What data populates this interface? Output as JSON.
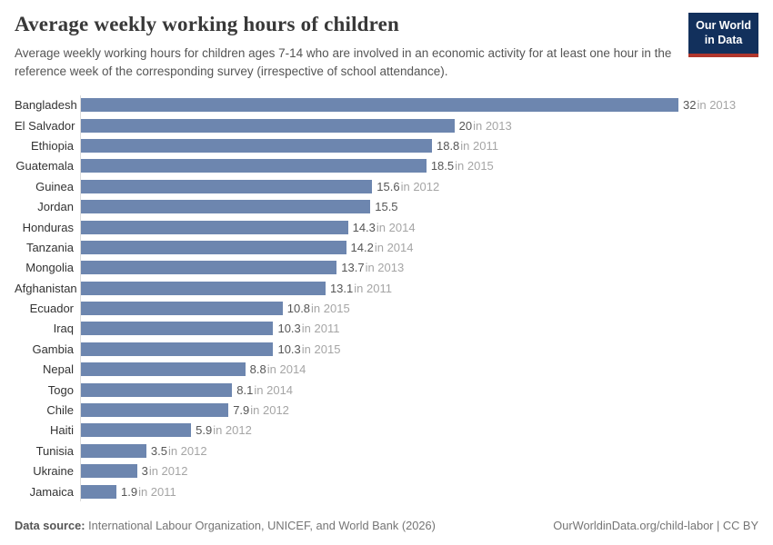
{
  "header": {
    "title": "Average weekly working hours of children",
    "subtitle": "Average weekly working hours for children ages 7-14 who are involved in an economic activity for at least one hour in the reference week of the corresponding survey (irrespective of school attendance).",
    "logo": {
      "line1": "Our World",
      "line2": "in Data",
      "bg_color": "#12305c",
      "accent_color": "#b0362c"
    }
  },
  "chart_data": {
    "type": "bar",
    "orientation": "horizontal",
    "title": "Average weekly working hours of children",
    "xlabel": "",
    "ylabel": "",
    "xlim": [
      0,
      32
    ],
    "grid": false,
    "legend": false,
    "bar_color": "#6d86af",
    "categories": [
      "Bangladesh",
      "El Salvador",
      "Ethiopia",
      "Guatemala",
      "Guinea",
      "Jordan",
      "Honduras",
      "Tanzania",
      "Mongolia",
      "Afghanistan",
      "Ecuador",
      "Iraq",
      "Gambia",
      "Nepal",
      "Togo",
      "Chile",
      "Haiti",
      "Tunisia",
      "Ukraine",
      "Jamaica"
    ],
    "values": [
      32,
      20,
      18.8,
      18.5,
      15.6,
      15.5,
      14.3,
      14.2,
      13.7,
      13.1,
      10.8,
      10.3,
      10.3,
      8.8,
      8.1,
      7.9,
      5.9,
      3.5,
      3,
      1.9
    ],
    "value_labels": [
      "32",
      "20",
      "18.8",
      "18.5",
      "15.6",
      "15.5",
      "14.3",
      "14.2",
      "13.7",
      "13.1",
      "10.8",
      "10.3",
      "10.3",
      "8.8",
      "8.1",
      "7.9",
      "5.9",
      "3.5",
      "3",
      "1.9"
    ],
    "year_labels": [
      "in 2013",
      "in 2013",
      "in 2011",
      "in 2015",
      "in 2012",
      "",
      "in 2014",
      "in 2014",
      "in 2013",
      "in 2011",
      "in 2015",
      "in 2011",
      "in 2015",
      "in 2014",
      "in 2014",
      "in 2012",
      "in 2012",
      "in 2012",
      "in 2012",
      "in 2011"
    ]
  },
  "footer": {
    "source_label": "Data source:",
    "source_text": " International Labour Organization, UNICEF, and World Bank (2026)",
    "link_text": "OurWorldinData.org/child-labor | CC BY"
  }
}
